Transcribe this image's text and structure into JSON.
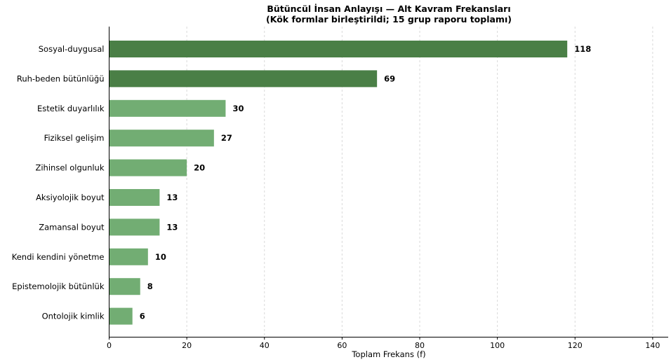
{
  "chart_data": {
    "type": "bar",
    "orientation": "horizontal",
    "title": "Bütüncül İnsan Anlayışı — Alt Kavram Frekansları",
    "subtitle": "(Kök formlar birleştirildi; 15 grup raporu toplamı)",
    "xlabel": "Toplam Frekans (f)",
    "ylabel": "",
    "xlim": [
      0,
      144
    ],
    "xticks": [
      0,
      20,
      40,
      60,
      80,
      100,
      120,
      140
    ],
    "grid": "x",
    "categories": [
      "Sosyal-duygusal",
      "Ruh-beden bütünlüğü",
      "Estetik duyarlılık",
      "Fiziksel gelişim",
      "Zihinsel olgunluk",
      "Aksiyolojik boyut",
      "Zamansal boyut",
      "Kendi kendini yönetme",
      "Epistemolojik bütünlük",
      "Ontolojik kimlik"
    ],
    "values": [
      118,
      69,
      30,
      27,
      20,
      13,
      13,
      10,
      8,
      6
    ],
    "colors": {
      "dark": "#4a7f46",
      "light": "#72ad73"
    }
  }
}
